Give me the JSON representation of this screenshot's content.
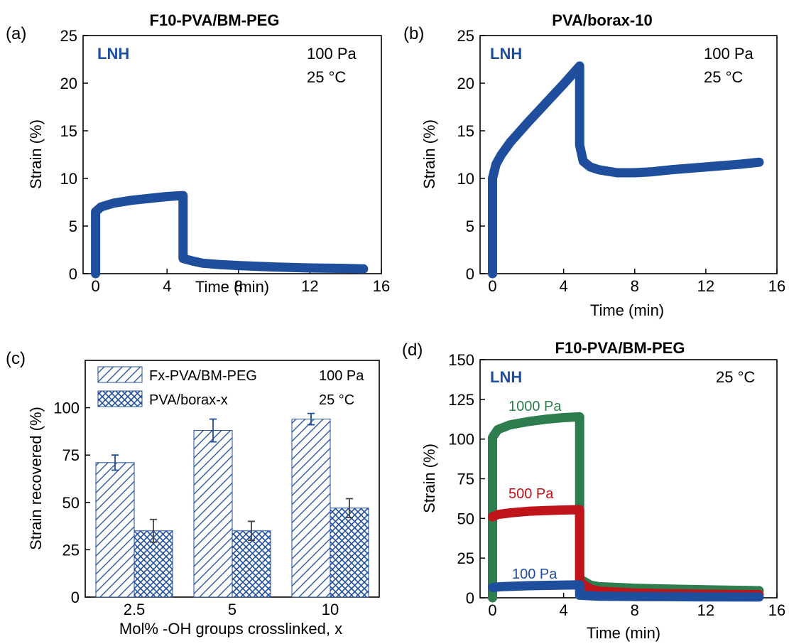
{
  "chart_data": [
    {
      "panel": "(a)",
      "type": "line",
      "title": "F10-PVA/BM-PEG",
      "xlabel": "Time (min)",
      "ylabel": "Strain (%)",
      "xlim": [
        -0.7,
        16
      ],
      "ylim": [
        0,
        25
      ],
      "xticks": [
        0,
        4,
        8,
        12,
        16
      ],
      "yticks": [
        0,
        5,
        10,
        15,
        20,
        25
      ],
      "series_label": "LNH",
      "annotations": [
        "100 Pa",
        "25 °C"
      ],
      "series": [
        {
          "color": "#1f4e9c",
          "points": [
            [
              0,
              0
            ],
            [
              0,
              6.5
            ],
            [
              0.3,
              7.0
            ],
            [
              1,
              7.4
            ],
            [
              2,
              7.7
            ],
            [
              3,
              7.9
            ],
            [
              4,
              8.1
            ],
            [
              4.9,
              8.2
            ],
            [
              4.9,
              1.6
            ],
            [
              5.5,
              1.3
            ],
            [
              6,
              1.1
            ],
            [
              7,
              0.95
            ],
            [
              8,
              0.85
            ],
            [
              10,
              0.7
            ],
            [
              12,
              0.6
            ],
            [
              14,
              0.55
            ],
            [
              15,
              0.5
            ]
          ]
        }
      ]
    },
    {
      "panel": "(b)",
      "type": "line",
      "title": "PVA/borax-10",
      "xlabel": "Time (min)",
      "ylabel": "Strain (%)",
      "xlim": [
        -0.7,
        16
      ],
      "ylim": [
        0,
        25
      ],
      "xticks": [
        0,
        4,
        8,
        12,
        16
      ],
      "yticks": [
        0,
        5,
        10,
        15,
        20,
        25
      ],
      "series_label": "LNH",
      "annotations": [
        "100 Pa",
        "25 °C"
      ],
      "series": [
        {
          "color": "#1f4e9c",
          "points": [
            [
              0,
              0
            ],
            [
              0,
              10
            ],
            [
              0.2,
              11.5
            ],
            [
              0.5,
              12.5
            ],
            [
              1,
              13.8
            ],
            [
              2,
              15.9
            ],
            [
              3,
              17.9
            ],
            [
              4,
              19.9
            ],
            [
              4.9,
              21.8
            ],
            [
              4.9,
              13.5
            ],
            [
              5.1,
              11.8
            ],
            [
              5.5,
              11.2
            ],
            [
              6,
              10.9
            ],
            [
              7,
              10.6
            ],
            [
              8,
              10.6
            ],
            [
              9,
              10.7
            ],
            [
              10,
              10.9
            ],
            [
              12,
              11.2
            ],
            [
              14,
              11.5
            ],
            [
              15,
              11.7
            ]
          ]
        }
      ]
    },
    {
      "panel": "(c)",
      "type": "bar",
      "title": "",
      "xlabel": "Mol% -OH groups crosslinked, x",
      "ylabel": "Strain recovered (%)",
      "ylim": [
        0,
        125
      ],
      "yticks": [
        0,
        25,
        50,
        75,
        100
      ],
      "categories": [
        "2.5",
        "5",
        "10"
      ],
      "annotations": [
        "100 Pa",
        "25 °C"
      ],
      "series": [
        {
          "name": "Fx-PVA/BM-PEG",
          "values": [
            71,
            88,
            94
          ],
          "errors": [
            4,
            6,
            3
          ],
          "pattern": "diagonal"
        },
        {
          "name": "PVA/borax-x",
          "values": [
            35,
            35,
            47
          ],
          "errors": [
            6,
            5,
            5
          ],
          "pattern": "crosshatch"
        }
      ]
    },
    {
      "panel": "(d)",
      "type": "line",
      "title": "F10-PVA/BM-PEG",
      "xlabel": "Time (min)",
      "ylabel": "Strain (%)",
      "xlim": [
        -0.7,
        16
      ],
      "ylim": [
        0,
        150
      ],
      "xticks": [
        0,
        4,
        8,
        12,
        16
      ],
      "yticks": [
        0,
        25,
        50,
        75,
        100,
        125,
        150
      ],
      "series_label": "LNH",
      "annotations": [
        "25 °C"
      ],
      "series": [
        {
          "name": "1000 Pa",
          "color": "#2e7d4f",
          "points": [
            [
              0,
              0
            ],
            [
              0,
              101
            ],
            [
              0.3,
              106
            ],
            [
              1,
              109
            ],
            [
              2,
              111
            ],
            [
              3,
              112.5
            ],
            [
              4,
              113.5
            ],
            [
              4.9,
              114
            ],
            [
              4.9,
              12
            ],
            [
              5.5,
              8
            ],
            [
              6,
              7
            ],
            [
              8,
              6
            ],
            [
              10,
              5.5
            ],
            [
              12,
              5
            ],
            [
              15,
              4.5
            ]
          ]
        },
        {
          "name": "500 Pa",
          "color": "#c0141b",
          "points": [
            [
              0,
              51
            ],
            [
              0.3,
              52.5
            ],
            [
              1,
              53.5
            ],
            [
              2,
              54.5
            ],
            [
              3,
              55
            ],
            [
              4,
              55.3
            ],
            [
              4.9,
              55.5
            ],
            [
              4.9,
              10
            ],
            [
              5.5,
              5.5
            ],
            [
              6,
              4.2
            ],
            [
              8,
              3
            ],
            [
              10,
              2.6
            ],
            [
              12,
              2.3
            ],
            [
              15,
              2
            ]
          ]
        },
        {
          "name": "100 Pa",
          "color": "#1f4e9c",
          "points": [
            [
              0,
              6.5
            ],
            [
              0.5,
              7
            ],
            [
              2,
              7.6
            ],
            [
              4,
              8
            ],
            [
              4.9,
              8.2
            ],
            [
              4.9,
              1.6
            ],
            [
              6,
              1
            ],
            [
              8,
              0.8
            ],
            [
              10,
              0.7
            ],
            [
              12,
              0.6
            ],
            [
              15,
              0.5
            ]
          ]
        }
      ]
    }
  ]
}
